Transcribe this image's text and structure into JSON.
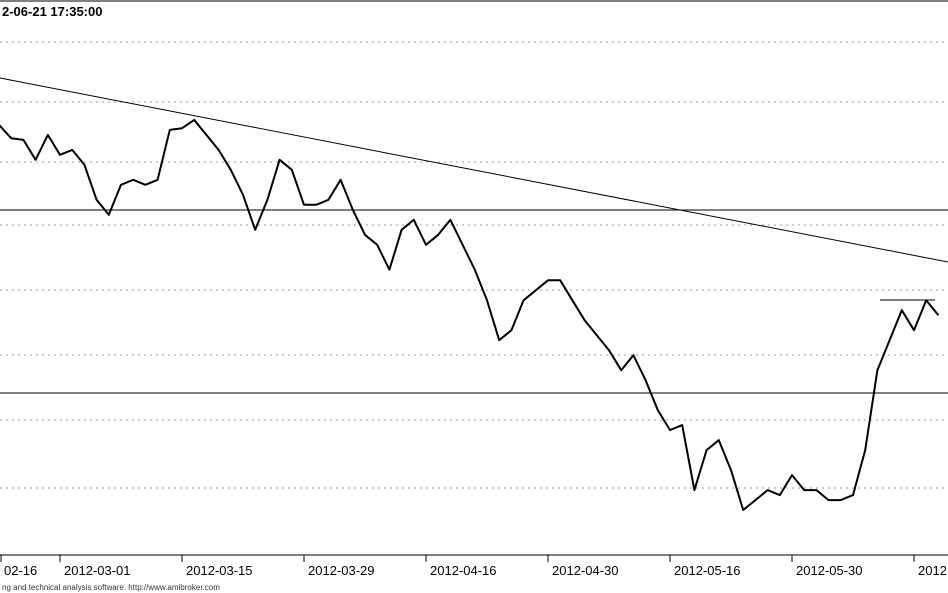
{
  "chart_data": {
    "type": "line",
    "title": "2-06-21 17:35:00",
    "footer": "ng and technical analysis software. http://www.amibroker.com",
    "categories": [
      "02-16",
      null,
      null,
      null,
      null,
      "2012-03-01",
      null,
      null,
      null,
      null,
      null,
      null,
      null,
      null,
      null,
      "2012-03-15",
      null,
      null,
      null,
      null,
      null,
      null,
      null,
      null,
      null,
      "2012-03-29",
      null,
      null,
      null,
      null,
      null,
      null,
      null,
      null,
      null,
      "2012-04-16",
      null,
      null,
      null,
      null,
      null,
      null,
      null,
      null,
      null,
      "2012-04-30",
      null,
      null,
      null,
      null,
      null,
      null,
      null,
      null,
      null,
      "2012-05-16",
      null,
      null,
      null,
      null,
      null,
      null,
      null,
      null,
      null,
      "2012-05-30",
      null,
      null,
      null,
      null,
      null,
      null,
      null,
      null,
      null,
      "2012",
      null,
      null
    ],
    "series": [
      {
        "color": "#000000",
        "values": [
          77.5,
          75.1,
          74.8,
          71.2,
          75.7,
          72.1,
          73.0,
          70.3,
          64.0,
          61.3,
          66.7,
          67.6,
          66.7,
          67.6,
          76.6,
          76.9,
          78.4,
          75.7,
          73.0,
          69.4,
          64.9,
          58.6,
          64.0,
          71.2,
          69.4,
          63.1,
          63.1,
          64.0,
          67.6,
          62.2,
          57.7,
          55.9,
          51.4,
          58.6,
          60.4,
          55.9,
          57.7,
          60.4,
          55.9,
          51.4,
          45.9,
          38.7,
          40.5,
          45.9,
          47.7,
          49.5,
          49.5,
          45.9,
          42.3,
          39.6,
          36.9,
          33.3,
          36.0,
          31.5,
          26.1,
          22.5,
          23.4,
          11.7,
          18.9,
          20.7,
          15.3,
          8.1,
          9.9,
          11.7,
          10.8,
          14.4,
          11.7,
          11.7,
          9.9,
          9.9,
          10.8,
          18.9,
          33.3,
          38.7,
          44.1,
          40.5,
          45.9,
          43.2
        ]
      }
    ],
    "ylim": [
      0,
      100
    ]
  }
}
